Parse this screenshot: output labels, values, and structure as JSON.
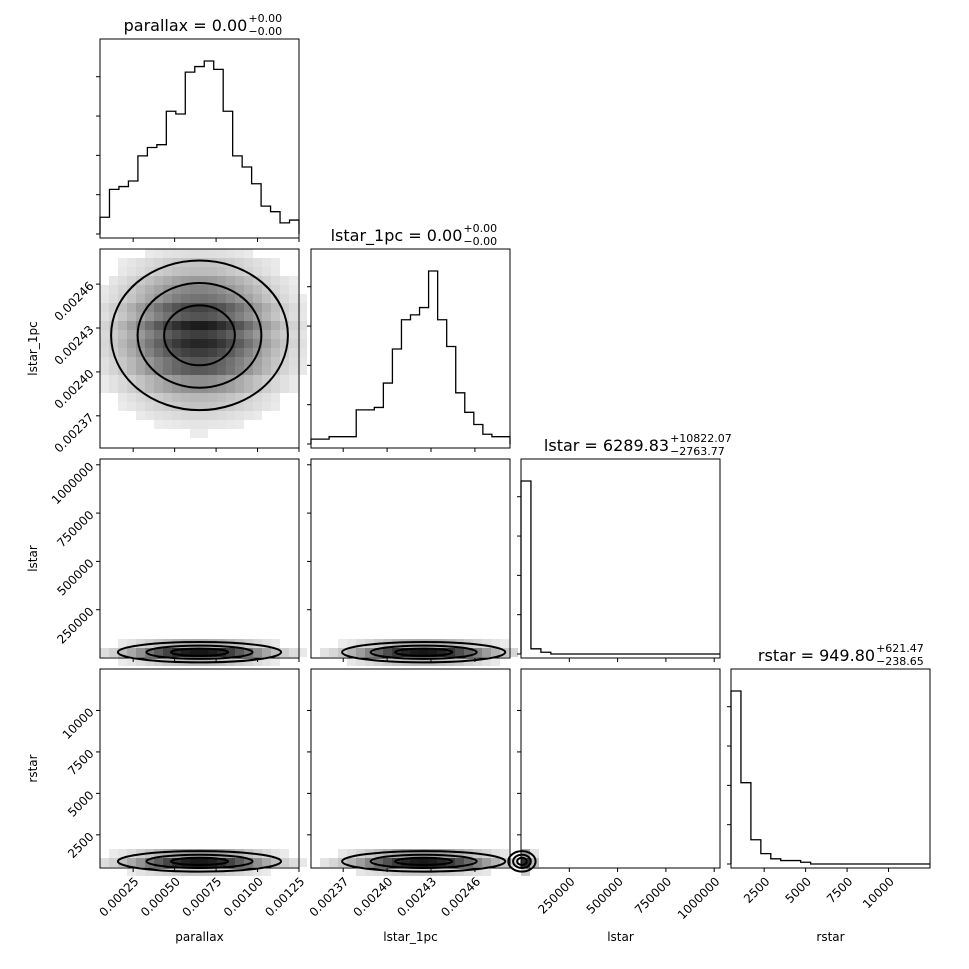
{
  "chart_data": {
    "type": "corner",
    "parameters": [
      "parallax",
      "lstar_1pc",
      "lstar",
      "rstar"
    ],
    "titles": [
      {
        "param": "parallax",
        "median": "0.00",
        "plus": "+0.00",
        "minus": "−0.00"
      },
      {
        "param": "lstar_1pc",
        "median": "0.00",
        "plus": "+0.00",
        "minus": "−0.00"
      },
      {
        "param": "lstar",
        "median": "6289.83",
        "plus": "+10822.07",
        "minus": "−2763.77"
      },
      {
        "param": "rstar",
        "median": "949.80",
        "plus": "+621.47",
        "minus": "−238.65"
      }
    ],
    "axes": {
      "parallax": {
        "range": [
          5e-05,
          0.00125
        ],
        "ticks": [
          0.00025,
          0.0005,
          0.00075,
          0.001,
          0.00125
        ],
        "tick_labels": [
          "0.00025",
          "0.00050",
          "0.00075",
          "0.00100",
          "0.00125"
        ]
      },
      "lstar_1pc": {
        "range": [
          0.002348,
          0.002484
        ],
        "ticks": [
          0.00237,
          0.0024,
          0.00243,
          0.00246
        ],
        "tick_labels": [
          "0.00237",
          "0.00240",
          "0.00243",
          "0.00246"
        ]
      },
      "lstar": {
        "range": [
          0,
          1030000
        ],
        "ticks": [
          250000,
          500000,
          750000,
          1000000
        ],
        "tick_labels": [
          "250000",
          "500000",
          "750000",
          "1000000"
        ]
      },
      "rstar": {
        "range": [
          500,
          12500
        ],
        "ticks": [
          2500,
          5000,
          7500,
          10000
        ],
        "tick_labels": [
          "2500",
          "5000",
          "7500",
          "10000"
        ]
      }
    },
    "histograms": [
      {
        "param": "parallax",
        "counts": [
          6,
          16,
          17,
          19,
          28,
          31,
          32,
          44,
          43,
          58,
          60,
          62,
          59,
          44,
          28,
          24,
          18,
          10,
          8,
          4,
          5
        ]
      },
      {
        "param": "lstar_1pc",
        "counts": [
          2,
          2,
          3,
          3,
          3,
          14,
          14,
          15,
          25,
          39,
          51,
          53,
          56,
          71,
          51,
          40,
          21,
          13,
          8,
          4,
          3,
          3
        ]
      },
      {
        "param": "lstar",
        "counts": [
          100,
          3,
          1,
          0,
          0,
          0,
          0,
          0,
          0,
          0,
          0,
          0,
          0,
          0,
          0,
          0,
          0,
          0,
          0,
          0
        ]
      },
      {
        "param": "rstar",
        "counts": [
          100,
          47,
          14,
          6,
          3,
          2,
          2,
          1,
          0,
          0,
          0,
          0,
          0,
          0,
          0,
          0,
          0,
          0,
          0,
          0
        ]
      }
    ],
    "correlations": [
      {
        "x": "parallax",
        "y": "lstar_1pc",
        "peak": [
          0.00065,
          0.002425
        ]
      },
      {
        "x": "parallax",
        "y": "lstar",
        "peak": [
          0.00065,
          30000
        ]
      },
      {
        "x": "lstar_1pc",
        "y": "lstar",
        "peak": [
          0.002425,
          30000
        ]
      },
      {
        "x": "parallax",
        "y": "rstar",
        "peak": [
          0.00065,
          900
        ]
      },
      {
        "x": "lstar_1pc",
        "y": "rstar",
        "peak": [
          0.002425,
          900
        ]
      },
      {
        "x": "lstar",
        "y": "rstar",
        "peak": [
          5000,
          900
        ]
      }
    ],
    "xlabels": [
      "parallax",
      "lstar_1pc",
      "lstar",
      "rstar"
    ],
    "ylabels": [
      "lstar_1pc",
      "lstar",
      "rstar"
    ],
    "grid": false,
    "colors": {
      "ink": "#000000",
      "background": "#ffffff"
    }
  }
}
